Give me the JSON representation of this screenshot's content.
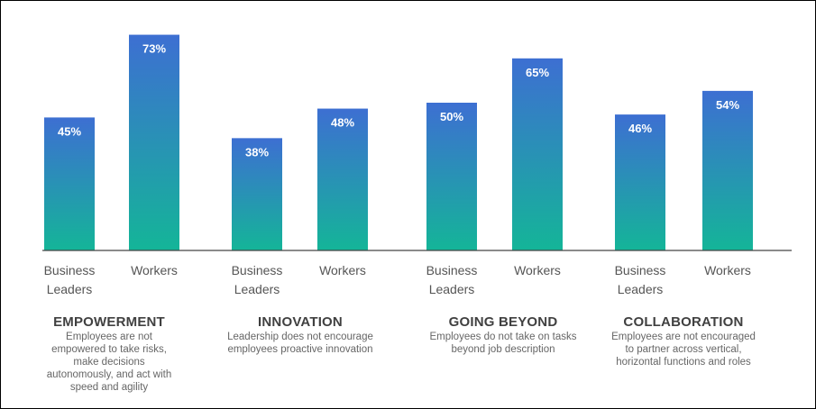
{
  "chart_data": {
    "type": "bar",
    "title": "",
    "xlabel": "",
    "ylabel": "",
    "ylim": [
      0,
      75
    ],
    "grid": false,
    "groups": [
      {
        "title": "EMPOWERMENT",
        "description": "Employees are not empowered to take risks, make decisions autonomously, and act with speed and agility",
        "bars": [
          {
            "label": "Business Leaders",
            "value": 45,
            "value_label": "45%"
          },
          {
            "label": "Workers",
            "value": 73,
            "value_label": "73%"
          }
        ]
      },
      {
        "title": "INNOVATION",
        "description": "Leadership does not encourage employees proactive innovation",
        "bars": [
          {
            "label": "Business Leaders",
            "value": 38,
            "value_label": "38%"
          },
          {
            "label": "Workers",
            "value": 48,
            "value_label": "48%"
          }
        ]
      },
      {
        "title": "GOING BEYOND",
        "description": "Employees do not take on tasks beyond job description",
        "bars": [
          {
            "label": "Business Leaders",
            "value": 50,
            "value_label": "50%"
          },
          {
            "label": "Workers",
            "value": 65,
            "value_label": "65%"
          }
        ]
      },
      {
        "title": "COLLABORATION",
        "description": "Employees are not encouraged to partner across vertical, horizontal functions and roles",
        "bars": [
          {
            "label": "Business Leaders",
            "value": 46,
            "value_label": "46%"
          },
          {
            "label": "Workers",
            "value": 54,
            "value_label": "54%"
          }
        ]
      }
    ],
    "colors": {
      "bar_top": "#3d6fd2",
      "bar_bottom": "#14b598",
      "axis": "#444444",
      "label": "#555555"
    }
  }
}
